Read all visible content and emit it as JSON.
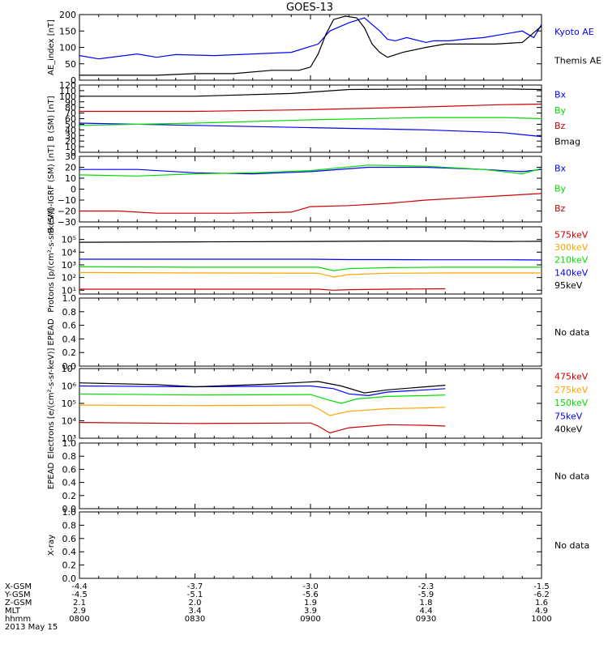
{
  "title": "GOES-13",
  "x_axis": {
    "ticks": [
      "0800",
      "0830",
      "0900",
      "0930",
      "1000"
    ]
  },
  "orbit_table": {
    "rows": [
      {
        "label": "X-GSM",
        "values": [
          "-4.4",
          "-3.7",
          "-3.0",
          "-2.3",
          "-1.5"
        ]
      },
      {
        "label": "Y-GSM",
        "values": [
          "-4.5",
          "-5.1",
          "-5.6",
          "-5.9",
          "-6.2"
        ]
      },
      {
        "label": "Z-GSM",
        "values": [
          "2.1",
          "2.0",
          "1.9",
          "1.8",
          "1.6"
        ]
      },
      {
        "label": "MLT",
        "values": [
          "2.9",
          "3.4",
          "3.9",
          "4.4",
          "4.9"
        ]
      },
      {
        "label": "hhmm",
        "values": [
          "0800",
          "0830",
          "0900",
          "0930",
          "1000"
        ]
      }
    ],
    "date": "2013 May 15"
  },
  "colors": {
    "black": "#000000",
    "blue": "#0000ff",
    "red": "#cc0000",
    "green": "#00dd00",
    "orange": "#ffa500"
  },
  "chart_data": [
    {
      "type": "line",
      "ylabel": "AE_index [nT]",
      "yscale": "linear",
      "ylim": [
        0,
        200
      ],
      "yticks": [
        {
          "v": 0,
          "l": "0"
        },
        {
          "v": 50,
          "l": "50"
        },
        {
          "v": 100,
          "l": "100"
        },
        {
          "v": 150,
          "l": "150"
        },
        {
          "v": 200,
          "l": "200"
        }
      ],
      "series": [
        {
          "name": "Kyoto AE",
          "color": "#0000ff",
          "x": [
            0,
            5,
            15,
            20,
            25,
            35,
            45,
            55,
            62,
            65,
            70,
            74,
            78,
            80,
            82,
            85,
            90,
            92,
            96,
            100,
            105,
            110,
            115,
            118,
            120
          ],
          "y": [
            75,
            65,
            80,
            70,
            78,
            75,
            80,
            85,
            110,
            150,
            175,
            190,
            150,
            125,
            120,
            130,
            115,
            120,
            120,
            125,
            130,
            140,
            150,
            130,
            170
          ]
        },
        {
          "name": "Themis AE",
          "color": "#000000",
          "x": [
            0,
            10,
            20,
            30,
            40,
            50,
            57,
            60,
            62,
            64,
            66,
            69,
            72,
            74,
            76,
            78,
            80,
            84,
            90,
            95,
            100,
            108,
            115,
            120
          ],
          "y": [
            15,
            15,
            15,
            20,
            20,
            30,
            30,
            40,
            80,
            140,
            185,
            195,
            190,
            160,
            110,
            85,
            70,
            85,
            100,
            110,
            110,
            110,
            115,
            165
          ]
        }
      ]
    },
    {
      "type": "line",
      "ylabel": "B (SM) [nT]",
      "yscale": "linear",
      "ylim": [
        0,
        120
      ],
      "yticks": [
        {
          "v": 0,
          "l": "0"
        },
        {
          "v": 10,
          "l": "10"
        },
        {
          "v": 20,
          "l": "20"
        },
        {
          "v": 30,
          "l": "30"
        },
        {
          "v": 40,
          "l": "40"
        },
        {
          "v": 50,
          "l": "50"
        },
        {
          "v": 60,
          "l": "60"
        },
        {
          "v": 70,
          "l": "70"
        },
        {
          "v": 80,
          "l": "80"
        },
        {
          "v": 90,
          "l": "90"
        },
        {
          "v": 100,
          "l": "100"
        },
        {
          "v": 110,
          "l": "110"
        },
        {
          "v": 120,
          "l": "120"
        }
      ],
      "series": [
        {
          "name": "Bx",
          "color": "#0000ff",
          "x": [
            0,
            30,
            60,
            90,
            110,
            120
          ],
          "y": [
            52,
            48,
            44,
            40,
            35,
            28
          ]
        },
        {
          "name": "By",
          "color": "#00dd00",
          "x": [
            0,
            30,
            60,
            90,
            110,
            120
          ],
          "y": [
            48,
            52,
            58,
            62,
            62,
            60
          ]
        },
        {
          "name": "Bz",
          "color": "#cc0000",
          "x": [
            0,
            30,
            60,
            90,
            110,
            120
          ],
          "y": [
            73,
            73,
            76,
            81,
            85,
            86
          ]
        },
        {
          "name": "Bmag",
          "color": "#000000",
          "x": [
            0,
            30,
            55,
            70,
            90,
            110,
            120
          ],
          "y": [
            100,
            100,
            105,
            112,
            113,
            113,
            112
          ]
        }
      ]
    },
    {
      "type": "line",
      "ylabel": "B (SM)-IGRF (SM) [nT]",
      "yscale": "linear",
      "ylim": [
        -30,
        30
      ],
      "yticks": [
        {
          "v": -30,
          "l": "−30"
        },
        {
          "v": -20,
          "l": "−20"
        },
        {
          "v": -10,
          "l": "−10"
        },
        {
          "v": 0,
          "l": "0"
        },
        {
          "v": 10,
          "l": "10"
        },
        {
          "v": 20,
          "l": "20"
        },
        {
          "v": 30,
          "l": "30"
        }
      ],
      "series": [
        {
          "name": "Bx",
          "color": "#0000ff",
          "x": [
            0,
            15,
            30,
            45,
            60,
            75,
            90,
            105,
            115,
            120
          ],
          "y": [
            18,
            18,
            15,
            14,
            16,
            20,
            20,
            18,
            16,
            18
          ]
        },
        {
          "name": "By",
          "color": "#00dd00",
          "x": [
            0,
            15,
            30,
            45,
            60,
            75,
            90,
            105,
            115,
            120
          ],
          "y": [
            13,
            12,
            14,
            15,
            17,
            22,
            21,
            18,
            14,
            19
          ]
        },
        {
          "name": "Bz",
          "color": "#cc0000",
          "x": [
            0,
            10,
            20,
            40,
            55,
            60,
            70,
            80,
            90,
            100,
            110,
            120
          ],
          "y": [
            -20,
            -20,
            -22,
            -22,
            -21,
            -16,
            -15,
            -13,
            -10,
            -8,
            -6,
            -4
          ]
        }
      ]
    },
    {
      "type": "line",
      "ylabel": "Protons [p/(cm²-s-sr-keV)]",
      "yscale": "log",
      "ylim": [
        5,
        1000000
      ],
      "yticks": [
        {
          "v": 10,
          "l": "10¹"
        },
        {
          "v": 100,
          "l": "10²"
        },
        {
          "v": 1000,
          "l": "10³"
        },
        {
          "v": 10000,
          "l": "10⁴"
        },
        {
          "v": 100000,
          "l": "10⁵"
        }
      ],
      "series": [
        {
          "name": "575keV",
          "color": "#cc0000",
          "x": [
            0,
            30,
            62,
            66,
            70,
            80,
            95
          ],
          "y": [
            12,
            12,
            12,
            10,
            11,
            12,
            13
          ]
        },
        {
          "name": "300keV",
          "color": "#ffa500",
          "x": [
            0,
            30,
            62,
            66,
            70,
            80,
            95,
            100,
            108,
            112,
            120
          ],
          "y": [
            250,
            230,
            220,
            110,
            170,
            220,
            230,
            230,
            230,
            230,
            230
          ]
        },
        {
          "name": "210keV",
          "color": "#00dd00",
          "x": [
            0,
            30,
            62,
            66,
            70,
            80,
            95,
            100,
            108,
            112,
            120
          ],
          "y": [
            700,
            650,
            650,
            350,
            500,
            600,
            650,
            650,
            650,
            650,
            650
          ]
        },
        {
          "name": "140keV",
          "color": "#0000ff",
          "x": [
            0,
            30,
            60,
            70,
            80,
            90,
            100,
            108,
            112,
            120
          ],
          "y": [
            2800,
            2800,
            2800,
            2600,
            2600,
            2500,
            2500,
            2500,
            2500,
            2400
          ]
        },
        {
          "name": "95keV",
          "color": "#000000",
          "x": [
            0,
            30,
            60,
            80,
            100,
            108,
            112,
            120
          ],
          "y": [
            60000,
            65000,
            70000,
            75000,
            75000,
            70000,
            70000,
            72000
          ]
        }
      ]
    },
    {
      "type": "line",
      "ylabel": "EPEAD",
      "yscale": "linear",
      "ylim": [
        0,
        1
      ],
      "yticks": [
        {
          "v": 0,
          "l": "0.0"
        },
        {
          "v": 0.2,
          "l": "0.2"
        },
        {
          "v": 0.4,
          "l": "0.4"
        },
        {
          "v": 0.6,
          "l": "0.6"
        },
        {
          "v": 0.8,
          "l": "0.8"
        },
        {
          "v": 1,
          "l": "1.0"
        }
      ],
      "no_data": "No data",
      "series": []
    },
    {
      "type": "line",
      "ylabel": "Electrons [e/(cm²-s-sr-keV)]",
      "yscale": "log",
      "ylim": [
        1000,
        10000000
      ],
      "yticks": [
        {
          "v": 1000,
          "l": "10³"
        },
        {
          "v": 10000,
          "l": "10⁴"
        },
        {
          "v": 100000,
          "l": "10⁵"
        },
        {
          "v": 1000000,
          "l": "10⁶"
        },
        {
          "v": 10000000,
          "l": "10⁷"
        }
      ],
      "series": [
        {
          "name": "475keV",
          "color": "#cc0000",
          "x": [
            0,
            30,
            60,
            62,
            65,
            70,
            80,
            90,
            95
          ],
          "y": [
            8000,
            7000,
            7500,
            5000,
            2000,
            4000,
            6000,
            5500,
            5000
          ]
        },
        {
          "name": "275keV",
          "color": "#ffa500",
          "x": [
            0,
            30,
            60,
            62,
            65,
            70,
            80,
            90,
            95
          ],
          "y": [
            80000,
            75000,
            80000,
            50000,
            20000,
            35000,
            50000,
            55000,
            60000
          ]
        },
        {
          "name": "150keV",
          "color": "#00dd00",
          "x": [
            0,
            30,
            60,
            65,
            68,
            72,
            80,
            90,
            95
          ],
          "y": [
            350000,
            300000,
            320000,
            150000,
            100000,
            180000,
            250000,
            280000,
            300000
          ]
        },
        {
          "name": "75keV",
          "color": "#0000ff",
          "x": [
            0,
            30,
            60,
            66,
            70,
            75,
            80,
            90,
            95
          ],
          "y": [
            1000000,
            900000,
            1000000,
            700000,
            350000,
            280000,
            450000,
            600000,
            700000
          ]
        },
        {
          "name": "40keV",
          "color": "#000000",
          "x": [
            0,
            20,
            30,
            50,
            62,
            68,
            74,
            80,
            90,
            95
          ],
          "y": [
            1500000,
            1200000,
            900000,
            1300000,
            1800000,
            1000000,
            400000,
            600000,
            900000,
            1100000
          ]
        }
      ]
    },
    {
      "type": "line",
      "ylabel": "EPEAD",
      "yscale": "linear",
      "ylim": [
        0,
        1
      ],
      "yticks": [
        {
          "v": 0,
          "l": "0.0"
        },
        {
          "v": 0.2,
          "l": "0.2"
        },
        {
          "v": 0.4,
          "l": "0.4"
        },
        {
          "v": 0.6,
          "l": "0.6"
        },
        {
          "v": 0.8,
          "l": "0.8"
        },
        {
          "v": 1,
          "l": "1.0"
        }
      ],
      "no_data": "No data",
      "series": []
    },
    {
      "type": "line",
      "ylabel": "X-ray",
      "yscale": "linear",
      "ylim": [
        0,
        1
      ],
      "yticks": [
        {
          "v": 0,
          "l": "0.0"
        },
        {
          "v": 0.2,
          "l": "0.2"
        },
        {
          "v": 0.4,
          "l": "0.4"
        },
        {
          "v": 0.6,
          "l": "0.6"
        },
        {
          "v": 0.8,
          "l": "0.8"
        },
        {
          "v": 1,
          "l": "1.0"
        }
      ],
      "no_data": "No data",
      "series": []
    }
  ]
}
